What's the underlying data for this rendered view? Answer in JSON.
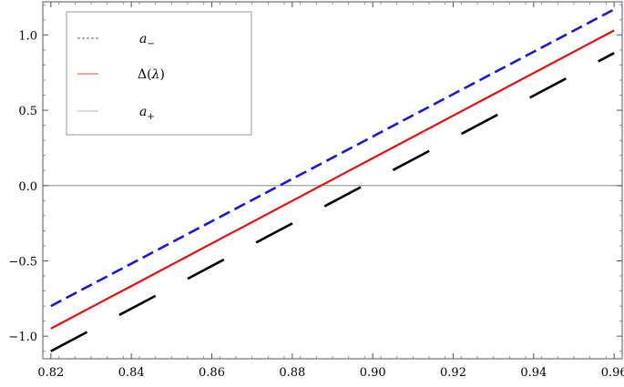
{
  "chart_data": {
    "type": "line",
    "title": "",
    "xlabel": "",
    "ylabel": "",
    "xlim": [
      0.818,
      0.962
    ],
    "ylim": [
      -1.15,
      1.22
    ],
    "x_ticks": [
      0.82,
      0.84,
      0.86,
      0.88,
      0.9,
      0.92,
      0.94,
      0.96
    ],
    "x_tick_labels": [
      "0.82",
      "0.84",
      "0.86",
      "0.88",
      "0.90",
      "0.92",
      "0.94",
      "0.96"
    ],
    "y_ticks": [
      -1.0,
      -0.5,
      0.0,
      0.5,
      1.0
    ],
    "y_tick_labels": [
      "−1.0",
      "−0.5",
      "0.0",
      "0.5",
      "1.0"
    ],
    "grid": false,
    "zero_line": true,
    "legend_position": "top-left",
    "series": [
      {
        "name": "a−",
        "legend_base": "a",
        "legend_sub": "−",
        "color": "#1a1acc",
        "style": "dashed",
        "x": [
          0.82,
          0.96
        ],
        "y": [
          -0.8,
          1.17
        ]
      },
      {
        "name": "Δ(λ)",
        "legend_base": "Δ(",
        "legend_mid": "λ",
        "legend_end": ")",
        "color": "#dd1111",
        "style": "solid",
        "x": [
          0.82,
          0.96
        ],
        "y": [
          -0.95,
          1.03
        ]
      },
      {
        "name": "a+",
        "legend_base": "a",
        "legend_sub": "+",
        "legend_swatch_color": "#ee8888",
        "color": "#000000",
        "style": "long-dashed",
        "x": [
          0.82,
          0.96
        ],
        "y": [
          -1.1,
          0.88
        ]
      }
    ]
  }
}
